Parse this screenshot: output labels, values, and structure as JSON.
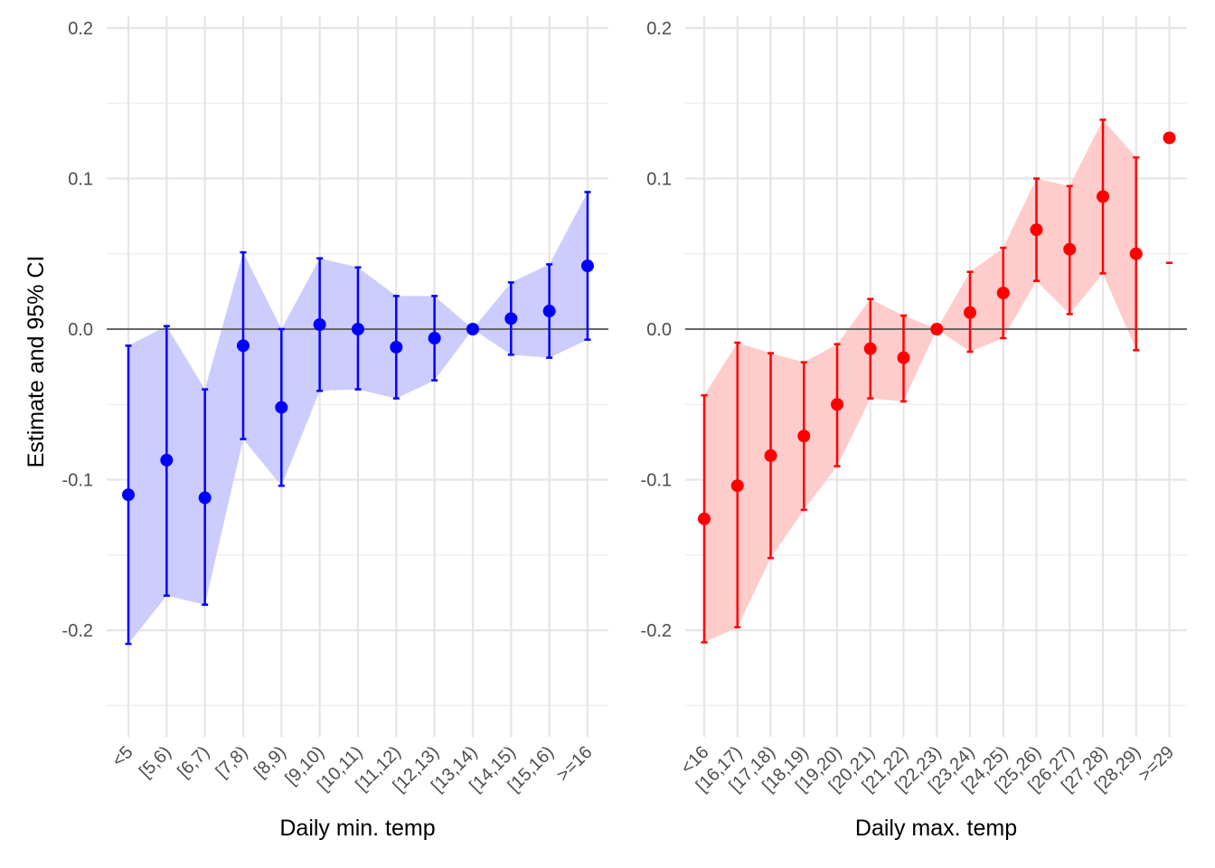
{
  "chart_data": [
    {
      "type": "scatter",
      "panel": "left",
      "xlabel": "Daily min. temp",
      "ylabel": "Estimate and 95% CI",
      "ylim": [
        -0.25,
        0.2
      ],
      "yticks": [
        0.2,
        0.1,
        0.0,
        -0.1,
        -0.2
      ],
      "ytick_labels": [
        "0.2",
        "0.1",
        "0.0",
        "-0.1",
        "-0.2"
      ],
      "grid": true,
      "zero_line": true,
      "color": "#0000ff",
      "ribbon_color": "#ccccff",
      "categories": [
        "<5",
        "[5,6)",
        "[6,7)",
        "[7,8)",
        "[8,9)",
        "[9,10)",
        "[10,11)",
        "[11,12)",
        "[12,13)",
        "[13,14)",
        "[14,15)",
        "[15,16)",
        ">=16"
      ],
      "estimate": [
        -0.11,
        -0.087,
        -0.112,
        -0.011,
        -0.052,
        0.003,
        0.0,
        -0.012,
        -0.006,
        0.0,
        0.007,
        0.012,
        0.042
      ],
      "ci_low": [
        -0.209,
        -0.177,
        -0.183,
        -0.073,
        -0.104,
        -0.041,
        -0.04,
        -0.046,
        -0.034,
        0.0,
        -0.017,
        -0.019,
        -0.007
      ],
      "ci_high": [
        -0.011,
        0.002,
        -0.04,
        0.051,
        0.0,
        0.047,
        0.041,
        0.022,
        0.022,
        0.0,
        0.031,
        0.043,
        0.091
      ]
    },
    {
      "type": "scatter",
      "panel": "right",
      "xlabel": "Daily max. temp",
      "ylabel": "",
      "ylim": [
        -0.25,
        0.2
      ],
      "yticks": [
        0.2,
        0.1,
        0.0,
        -0.1,
        -0.2
      ],
      "ytick_labels": [
        "0.2",
        "0.1",
        "0.0",
        "-0.1",
        "-0.2"
      ],
      "grid": true,
      "zero_line": true,
      "color": "#ff0000",
      "ribbon_color": "#ffcccc",
      "categories": [
        "<16",
        "[16,17)",
        "[17,18)",
        "[18,19)",
        "[19,20)",
        "[20,21)",
        "[21,22)",
        "[22,23)",
        "[23,24)",
        "[24,25)",
        "[25,26)",
        "[26,27)",
        "[27,28)",
        "[28,29)",
        ">=29"
      ],
      "estimate": [
        -0.126,
        -0.104,
        -0.084,
        -0.071,
        -0.05,
        -0.013,
        -0.019,
        0.0,
        0.011,
        0.024,
        0.066,
        0.053,
        0.088,
        0.05,
        0.127
      ],
      "ci_low": [
        -0.208,
        -0.198,
        -0.152,
        -0.12,
        -0.091,
        -0.046,
        -0.048,
        0.0,
        -0.015,
        -0.006,
        0.032,
        0.01,
        0.037,
        -0.014,
        0.044
      ],
      "ci_high": [
        -0.044,
        -0.009,
        -0.016,
        -0.022,
        -0.01,
        0.02,
        0.009,
        0.0,
        0.038,
        0.054,
        0.1,
        0.095,
        0.139,
        0.114,
        null
      ]
    }
  ]
}
